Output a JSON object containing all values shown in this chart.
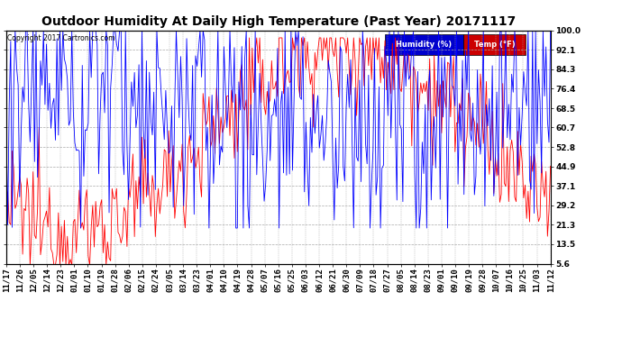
{
  "title": "Outdoor Humidity At Daily High Temperature (Past Year) 20171117",
  "copyright": "Copyright 2017 Cartronics.com",
  "ylabel_right": [
    "100.0",
    "92.1",
    "84.3",
    "76.4",
    "68.5",
    "60.7",
    "52.8",
    "44.9",
    "37.1",
    "29.2",
    "21.3",
    "13.5",
    "5.6"
  ],
  "yticks": [
    100.0,
    92.1,
    84.3,
    76.4,
    68.5,
    60.7,
    52.8,
    44.9,
    37.1,
    29.2,
    21.3,
    13.5,
    5.6
  ],
  "ymin": 5.6,
  "ymax": 100.0,
  "x_labels": [
    "11/17",
    "11/26",
    "12/05",
    "12/14",
    "12/23",
    "01/01",
    "01/10",
    "01/19",
    "01/28",
    "02/06",
    "02/15",
    "02/24",
    "03/05",
    "03/14",
    "03/23",
    "04/01",
    "04/10",
    "04/19",
    "04/28",
    "05/07",
    "05/16",
    "05/25",
    "06/03",
    "06/12",
    "06/21",
    "06/30",
    "07/09",
    "07/18",
    "07/27",
    "08/05",
    "08/14",
    "08/23",
    "09/01",
    "09/10",
    "09/19",
    "09/28",
    "10/07",
    "10/16",
    "10/25",
    "11/03",
    "11/12"
  ],
  "background_color": "#ffffff",
  "plot_bg_color": "#ffffff",
  "grid_color": "#aaaaaa",
  "humidity_color": "#0000ff",
  "temp_color": "#ff0000",
  "title_fontsize": 10,
  "tick_fontsize": 6.5,
  "legend_humidity_color": "#0000cc",
  "legend_temp_color": "#cc0000"
}
